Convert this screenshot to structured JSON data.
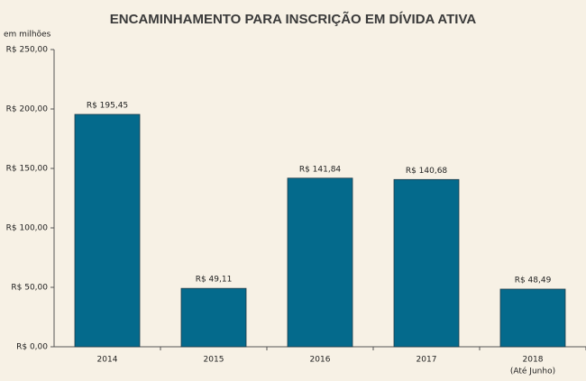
{
  "chart_data": {
    "type": "bar",
    "title": "ENCAMINHAMENTO PARA INSCRIÇÃO EM DÍVIDA ATIVA",
    "y_label": "em milhões",
    "categories": [
      "2014",
      "2015",
      "2016",
      "2017",
      "2018"
    ],
    "values": [
      195.45,
      49.11,
      141.84,
      140.68,
      48.49
    ],
    "value_labels": [
      "R$ 195,45",
      "R$ 49,11",
      "R$ 141,84",
      "R$ 140,68",
      "R$ 48,49"
    ],
    "annotation": "(Até Junho)",
    "color": "#046a8c",
    "ylim": [
      0,
      250
    ],
    "yticks": [
      {
        "value": 0,
        "label": "R$ 0,00"
      },
      {
        "value": 50,
        "label": "R$ 50,00"
      },
      {
        "value": 100,
        "label": "R$ 100,00"
      },
      {
        "value": 150,
        "label": "R$ 150,00"
      },
      {
        "value": 200,
        "label": "R$ 200,00"
      },
      {
        "value": 250,
        "label": "R$ 250,00"
      }
    ],
    "grid": false
  }
}
